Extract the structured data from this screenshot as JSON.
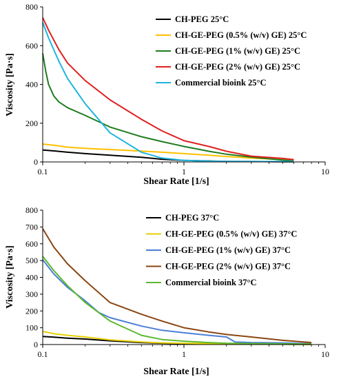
{
  "chart_data": [
    {
      "type": "line",
      "title": "",
      "xlabel": "Shear Rate [1/s]",
      "ylabel": "Viscosity [Pa·s]",
      "xscale": "log",
      "xlim": [
        0.1,
        10
      ],
      "ylim": [
        0,
        800
      ],
      "xticks": [
        "0.1",
        "1",
        "10"
      ],
      "yticks": [
        "0",
        "200",
        "400",
        "600",
        "800"
      ],
      "grid": false,
      "legend": "top-right",
      "series": [
        {
          "name": "CH-PEG 25°C",
          "color": "#000000",
          "points": [
            [
              0.1,
              62
            ],
            [
              0.12,
              57
            ],
            [
              0.15,
              50
            ],
            [
              0.2,
              43
            ],
            [
              0.3,
              35
            ],
            [
              0.5,
              24
            ],
            [
              0.7,
              14
            ],
            [
              1.0,
              8
            ],
            [
              1.5,
              5
            ],
            [
              2,
              3
            ],
            [
              3,
              2
            ],
            [
              5,
              1
            ],
            [
              6,
              1
            ]
          ]
        },
        {
          "name": "CH-GE-PEG (0.5% (w/v) GE) 25°C",
          "color": "#ffc000",
          "points": [
            [
              0.1,
              92
            ],
            [
              0.12,
              86
            ],
            [
              0.15,
              76
            ],
            [
              0.2,
              70
            ],
            [
              0.3,
              64
            ],
            [
              0.5,
              56
            ],
            [
              0.7,
              50
            ],
            [
              1.0,
              43
            ],
            [
              1.5,
              35
            ],
            [
              2,
              28
            ],
            [
              3,
              20
            ],
            [
              5,
              12
            ],
            [
              6,
              8
            ]
          ]
        },
        {
          "name": "CH-GE-PEG (1% (w/v) GE) 25°C",
          "color": "#1e7b1e",
          "points": [
            [
              0.1,
              560
            ],
            [
              0.105,
              470
            ],
            [
              0.11,
              400
            ],
            [
              0.12,
              340
            ],
            [
              0.13,
              310
            ],
            [
              0.15,
              280
            ],
            [
              0.2,
              240
            ],
            [
              0.3,
              180
            ],
            [
              0.5,
              130
            ],
            [
              0.7,
              105
            ],
            [
              1.0,
              80
            ],
            [
              1.5,
              55
            ],
            [
              2,
              40
            ],
            [
              3,
              25
            ],
            [
              5,
              10
            ],
            [
              6,
              5
            ]
          ]
        },
        {
          "name": "CH-GE-PEG (2% (w/v) GE) 25°C",
          "color": "#e02020",
          "points": [
            [
              0.1,
              745
            ],
            [
              0.11,
              680
            ],
            [
              0.13,
              580
            ],
            [
              0.15,
              510
            ],
            [
              0.2,
              420
            ],
            [
              0.3,
              320
            ],
            [
              0.5,
              220
            ],
            [
              0.7,
              160
            ],
            [
              1.0,
              110
            ],
            [
              1.5,
              80
            ],
            [
              2,
              55
            ],
            [
              3,
              30
            ],
            [
              5,
              18
            ],
            [
              6,
              12
            ]
          ]
        },
        {
          "name": "Commercial bioink 25°C",
          "color": "#1eb4e0",
          "points": [
            [
              0.1,
              720
            ],
            [
              0.11,
              640
            ],
            [
              0.13,
              520
            ],
            [
              0.15,
              430
            ],
            [
              0.2,
              300
            ],
            [
              0.3,
              150
            ],
            [
              0.5,
              50
            ],
            [
              0.7,
              20
            ],
            [
              1.0,
              8
            ],
            [
              1.5,
              4
            ],
            [
              2,
              3
            ],
            [
              3,
              2
            ],
            [
              6,
              2
            ]
          ]
        }
      ]
    },
    {
      "type": "line",
      "title": "",
      "xlabel": "Shear Rate [1/s]",
      "ylabel": "Viscosity [Pa·s]",
      "xscale": "log",
      "xlim": [
        0.1,
        10
      ],
      "ylim": [
        0,
        800
      ],
      "xticks": [
        "0.1",
        "1",
        "10"
      ],
      "yticks": [
        "0",
        "100",
        "200",
        "300",
        "400",
        "500",
        "600",
        "700",
        "800"
      ],
      "grid": false,
      "legend": "top-right",
      "series": [
        {
          "name": "CH-PEG 37°C",
          "color": "#000000",
          "points": [
            [
              0.1,
              48
            ],
            [
              0.12,
              44
            ],
            [
              0.15,
              38
            ],
            [
              0.2,
              33
            ],
            [
              0.3,
              22
            ],
            [
              0.5,
              12
            ],
            [
              0.7,
              8
            ],
            [
              1.0,
              5
            ],
            [
              2,
              3
            ],
            [
              5,
              2
            ],
            [
              8,
              1
            ]
          ]
        },
        {
          "name": "CH-GE-PEG (0.5% (w/v) GE) 37°C",
          "color": "#e6cf00",
          "points": [
            [
              0.1,
              78
            ],
            [
              0.12,
              65
            ],
            [
              0.15,
              55
            ],
            [
              0.2,
              45
            ],
            [
              0.3,
              28
            ],
            [
              0.5,
              15
            ],
            [
              0.7,
              10
            ],
            [
              1.0,
              7
            ],
            [
              2,
              4
            ],
            [
              5,
              2
            ],
            [
              8,
              1
            ]
          ]
        },
        {
          "name": "CH-GE-PEG (1% (w/v) GE) 37°C",
          "color": "#4a7fd6",
          "points": [
            [
              0.1,
              505
            ],
            [
              0.12,
              420
            ],
            [
              0.15,
              340
            ],
            [
              0.2,
              260
            ],
            [
              0.25,
              190
            ],
            [
              0.3,
              160
            ],
            [
              0.5,
              110
            ],
            [
              0.7,
              85
            ],
            [
              1.0,
              70
            ],
            [
              1.5,
              55
            ],
            [
              2,
              45
            ],
            [
              2.3,
              15
            ],
            [
              3,
              12
            ],
            [
              5,
              10
            ],
            [
              8,
              5
            ]
          ]
        },
        {
          "name": "CH-GE-PEG (2% (w/v) GE) 37°C",
          "color": "#8b4513",
          "points": [
            [
              0.1,
              690
            ],
            [
              0.12,
              580
            ],
            [
              0.15,
              480
            ],
            [
              0.2,
              380
            ],
            [
              0.3,
              250
            ],
            [
              0.5,
              180
            ],
            [
              0.7,
              140
            ],
            [
              1.0,
              100
            ],
            [
              1.5,
              75
            ],
            [
              2,
              60
            ],
            [
              3,
              45
            ],
            [
              5,
              25
            ],
            [
              8,
              12
            ]
          ]
        },
        {
          "name": "Commercial bioink 37°C",
          "color": "#5cb82e",
          "points": [
            [
              0.1,
              525
            ],
            [
              0.12,
              440
            ],
            [
              0.15,
              350
            ],
            [
              0.2,
              250
            ],
            [
              0.3,
              140
            ],
            [
              0.5,
              55
            ],
            [
              0.7,
              30
            ],
            [
              1.0,
              20
            ],
            [
              1.5,
              12
            ],
            [
              2,
              8
            ],
            [
              5,
              4
            ],
            [
              8,
              3
            ]
          ]
        }
      ]
    }
  ]
}
